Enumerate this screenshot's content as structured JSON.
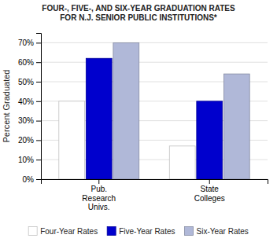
{
  "chart_data": {
    "type": "bar",
    "title": "FOUR-, FIVE-, AND SIX-YEAR GRADUATION RATES\nFOR N.J. SENIOR PUBLIC INSTITUTIONS*",
    "categories": [
      "Pub.\nResearch\nUnivs.",
      "State\nColleges"
    ],
    "series": [
      {
        "name": "Four-Year Rates",
        "color": "#ffffff",
        "values": [
          0.4,
          0.17
        ]
      },
      {
        "name": "Five-Year Rates",
        "color": "#0000cd",
        "values": [
          0.62,
          0.4
        ]
      },
      {
        "name": "Six-Year Rates",
        "color": "#b0b8d8",
        "values": [
          0.7,
          0.54
        ]
      }
    ],
    "y_label": "Percent Graduated",
    "ylim": [
      0,
      0.75
    ],
    "yticks": [
      {
        "value": 0.0,
        "label": "0%"
      },
      {
        "value": 0.1,
        "label": "10%"
      },
      {
        "value": 0.2,
        "label": "20%"
      },
      {
        "value": 0.3,
        "label": "30%"
      },
      {
        "value": 0.4,
        "label": "40%"
      },
      {
        "value": 0.5,
        "label": "50%"
      },
      {
        "value": 0.6,
        "label": "60%"
      },
      {
        "value": 0.7,
        "label": "70%"
      }
    ],
    "grid": true,
    "legend": "bottom"
  }
}
